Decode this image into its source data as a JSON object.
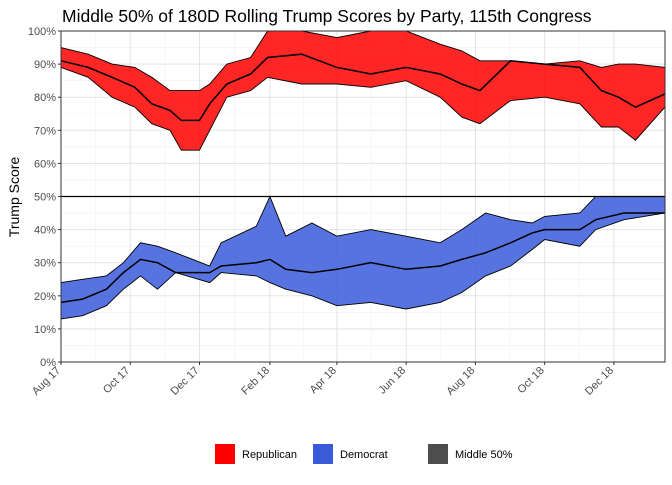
{
  "chart_data": {
    "type": "area",
    "title": "Middle 50% of 180D Rolling Trump Scores by Party, 115th Congress",
    "xlabel": "",
    "ylabel": "Trump Score",
    "x_ticks": [
      "Aug 17",
      "Oct 17",
      "Dec 17",
      "Feb 18",
      "Apr 18",
      "Jun 18",
      "Aug 18",
      "Oct 18",
      "Dec 18"
    ],
    "x_tick_dates": [
      "2017-08-01",
      "2017-10-01",
      "2017-12-01",
      "2018-02-01",
      "2018-04-01",
      "2018-06-01",
      "2018-08-01",
      "2018-10-01",
      "2018-12-01"
    ],
    "x_range": [
      "2017-08-01",
      "2019-01-15"
    ],
    "y_ticks": [
      "0%",
      "10%",
      "20%",
      "30%",
      "40%",
      "50%",
      "60%",
      "70%",
      "80%",
      "90%",
      "100%"
    ],
    "ylim": [
      0,
      100
    ],
    "reference_line": 50,
    "grid": true,
    "legend_position": "bottom",
    "legend": [
      {
        "label": "Republican",
        "color": "#ff0000"
      },
      {
        "label": "Democrat",
        "color": "#3a5bd9"
      },
      {
        "label": "Middle 50%",
        "color": "#4d4d4d"
      }
    ],
    "series": [
      {
        "name": "Republican",
        "color": "#ff0000",
        "points": [
          {
            "date": "2017-08-01",
            "low": 89,
            "median": 91,
            "high": 95
          },
          {
            "date": "2017-08-25",
            "low": 86,
            "median": 89,
            "high": 93
          },
          {
            "date": "2017-09-15",
            "low": 80,
            "median": 86,
            "high": 90
          },
          {
            "date": "2017-10-05",
            "low": 77,
            "median": 83,
            "high": 89
          },
          {
            "date": "2017-10-20",
            "low": 72,
            "median": 78,
            "high": 86
          },
          {
            "date": "2017-11-05",
            "low": 70,
            "median": 76,
            "high": 82
          },
          {
            "date": "2017-11-15",
            "low": 64,
            "median": 73,
            "high": 82
          },
          {
            "date": "2017-12-01",
            "low": 64,
            "median": 73,
            "high": 82
          },
          {
            "date": "2017-12-10",
            "low": 70,
            "median": 78,
            "high": 84
          },
          {
            "date": "2017-12-25",
            "low": 80,
            "median": 84,
            "high": 90
          },
          {
            "date": "2018-01-15",
            "low": 82,
            "median": 87,
            "high": 92
          },
          {
            "date": "2018-01-30",
            "low": 86,
            "median": 92,
            "high": 100
          },
          {
            "date": "2018-03-01",
            "low": 84,
            "median": 93,
            "high": 100
          },
          {
            "date": "2018-04-01",
            "low": 84,
            "median": 89,
            "high": 98
          },
          {
            "date": "2018-05-01",
            "low": 83,
            "median": 87,
            "high": 100
          },
          {
            "date": "2018-06-01",
            "low": 85,
            "median": 89,
            "high": 100
          },
          {
            "date": "2018-07-01",
            "low": 80,
            "median": 87,
            "high": 96
          },
          {
            "date": "2018-07-20",
            "low": 74,
            "median": 84,
            "high": 94
          },
          {
            "date": "2018-08-05",
            "low": 72,
            "median": 82,
            "high": 91
          },
          {
            "date": "2018-09-01",
            "low": 79,
            "median": 91,
            "high": 91
          },
          {
            "date": "2018-10-01",
            "low": 80,
            "median": 90,
            "high": 90
          },
          {
            "date": "2018-11-01",
            "low": 78,
            "median": 89,
            "high": 91
          },
          {
            "date": "2018-11-20",
            "low": 71,
            "median": 82,
            "high": 89
          },
          {
            "date": "2018-12-05",
            "low": 71,
            "median": 80,
            "high": 90
          },
          {
            "date": "2018-12-20",
            "low": 67,
            "median": 77,
            "high": 90
          },
          {
            "date": "2019-01-15",
            "low": 77,
            "median": 81,
            "high": 89
          }
        ]
      },
      {
        "name": "Democrat",
        "color": "#3a5bd9",
        "points": [
          {
            "date": "2017-08-01",
            "low": 13,
            "median": 18,
            "high": 24
          },
          {
            "date": "2017-08-20",
            "low": 14,
            "median": 19,
            "high": 25
          },
          {
            "date": "2017-09-10",
            "low": 17,
            "median": 22,
            "high": 26
          },
          {
            "date": "2017-09-25",
            "low": 22,
            "median": 27,
            "high": 30
          },
          {
            "date": "2017-10-10",
            "low": 26,
            "median": 31,
            "high": 36
          },
          {
            "date": "2017-10-25",
            "low": 22,
            "median": 30,
            "high": 35
          },
          {
            "date": "2017-11-10",
            "low": 27,
            "median": 27,
            "high": 33
          },
          {
            "date": "2017-12-10",
            "low": 24,
            "median": 27,
            "high": 29
          },
          {
            "date": "2017-12-20",
            "low": 27,
            "median": 29,
            "high": 36
          },
          {
            "date": "2018-01-20",
            "low": 26,
            "median": 30,
            "high": 41
          },
          {
            "date": "2018-02-01",
            "low": 24,
            "median": 31,
            "high": 50
          },
          {
            "date": "2018-02-15",
            "low": 22,
            "median": 28,
            "high": 38
          },
          {
            "date": "2018-03-10",
            "low": 20,
            "median": 27,
            "high": 42
          },
          {
            "date": "2018-04-01",
            "low": 17,
            "median": 28,
            "high": 38
          },
          {
            "date": "2018-05-01",
            "low": 18,
            "median": 30,
            "high": 40
          },
          {
            "date": "2018-06-01",
            "low": 16,
            "median": 28,
            "high": 38
          },
          {
            "date": "2018-07-01",
            "low": 18,
            "median": 29,
            "high": 36
          },
          {
            "date": "2018-07-20",
            "low": 21,
            "median": 31,
            "high": 40
          },
          {
            "date": "2018-08-10",
            "low": 26,
            "median": 33,
            "high": 45
          },
          {
            "date": "2018-09-01",
            "low": 29,
            "median": 36,
            "high": 43
          },
          {
            "date": "2018-09-20",
            "low": 34,
            "median": 39,
            "high": 42
          },
          {
            "date": "2018-10-01",
            "low": 37,
            "median": 40,
            "high": 44
          },
          {
            "date": "2018-11-01",
            "low": 35,
            "median": 40,
            "high": 45
          },
          {
            "date": "2018-11-15",
            "low": 40,
            "median": 43,
            "high": 50
          },
          {
            "date": "2018-12-10",
            "low": 43,
            "median": 45,
            "high": 50
          },
          {
            "date": "2019-01-15",
            "low": 45,
            "median": 45,
            "high": 50
          }
        ]
      }
    ]
  }
}
